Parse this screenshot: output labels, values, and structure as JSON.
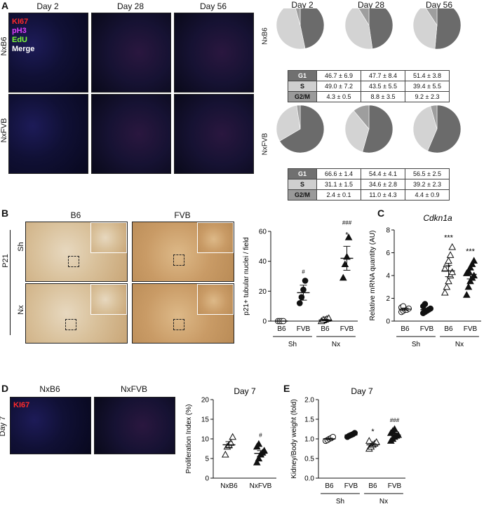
{
  "panels": {
    "A": "A",
    "B": "B",
    "C": "C",
    "D": "D",
    "E": "E"
  },
  "panelA": {
    "days": [
      "Day 2",
      "Day 28",
      "Day 56"
    ],
    "rows": [
      "NxB6",
      "NxFVB"
    ],
    "legend": [
      {
        "text": "KI67",
        "color": "#ff2a2a"
      },
      {
        "text": "pH3",
        "color": "#e040ff"
      },
      {
        "text": "EdU",
        "color": "#7dff3a"
      },
      {
        "text": "Merge",
        "color": "#ffffff"
      }
    ],
    "phase_colors": {
      "G1": "#6b6b6b",
      "S": "#d3d3d3",
      "G2/M": "#9e9e9e"
    },
    "tables": [
      {
        "row": "NxB6",
        "lines": [
          {
            "phase": "G1",
            "vals": [
              "46.7 ± 6.9",
              "47.7 ± 8.4",
              "51.4 ± 3.8"
            ]
          },
          {
            "phase": "S",
            "vals": [
              "49.0 ± 7.2",
              "43.5 ± 5.5",
              "39.4 ± 5.5"
            ]
          },
          {
            "phase": "G2/M",
            "vals": [
              "4.3 ± 0.5",
              "8.8 ± 3.5",
              "9.2 ± 2.3"
            ]
          }
        ]
      },
      {
        "row": "NxFVB",
        "lines": [
          {
            "phase": "G1",
            "vals": [
              "66.6 ± 1.4",
              "54.4 ± 4.1",
              "56.5 ± 2.5"
            ]
          },
          {
            "phase": "S",
            "vals": [
              "31.1 ± 1.5",
              "34.6 ± 2.8",
              "39.2 ± 2.3"
            ]
          },
          {
            "phase": "G2/M",
            "vals": [
              "2.4 ± 0.1",
              "11.0 ± 4.3",
              "4.4 ± 0.9"
            ]
          }
        ]
      }
    ]
  },
  "panelB": {
    "cols": [
      "B6",
      "FVB"
    ],
    "rows": [
      "Sh",
      "Nx"
    ],
    "stain": "P21"
  },
  "panelD": {
    "cols": [
      "NxB6",
      "NxFVB"
    ],
    "row": "Day 7",
    "legend": "KI67"
  },
  "chart_data": [
    {
      "type": "pie",
      "panel": "A",
      "row": "NxB6",
      "categories": [
        "Day 2",
        "Day 28",
        "Day 56"
      ],
      "series": [
        {
          "name": "G1",
          "values": [
            46.7,
            47.7,
            51.4
          ]
        },
        {
          "name": "S",
          "values": [
            49.0,
            43.5,
            39.4
          ]
        },
        {
          "name": "G2/M",
          "values": [
            4.3,
            8.8,
            9.2
          ]
        }
      ]
    },
    {
      "type": "pie",
      "panel": "A",
      "row": "NxFVB",
      "categories": [
        "Day 2",
        "Day 28",
        "Day 56"
      ],
      "series": [
        {
          "name": "G1",
          "values": [
            66.6,
            54.4,
            56.5
          ]
        },
        {
          "name": "S",
          "values": [
            31.1,
            34.6,
            39.2
          ]
        },
        {
          "name": "G2/M",
          "values": [
            2.4,
            11.0,
            4.4
          ]
        }
      ]
    },
    {
      "type": "scatter",
      "panel": "B",
      "title": "",
      "ylabel": "p21+ tubular nuclei / field",
      "ylim": [
        0,
        60
      ],
      "yticks": [
        0,
        20,
        40,
        60
      ],
      "categories": [
        "B6",
        "FVB",
        "B6",
        "FVB"
      ],
      "groups": [
        "Sh",
        "Nx"
      ],
      "series": [
        {
          "category": "B6",
          "group": "Sh",
          "marker": "open-circle",
          "points": [
            0,
            0,
            0,
            0
          ],
          "mean": 0,
          "sem": 0
        },
        {
          "category": "FVB",
          "group": "Sh",
          "marker": "filled-circle",
          "points": [
            12,
            16,
            21,
            27
          ],
          "mean": 19,
          "sem": 5
        },
        {
          "category": "B6",
          "group": "Nx",
          "marker": "open-triangle",
          "points": [
            0,
            0.5,
            1,
            1.5,
            2,
            0,
            1
          ],
          "mean": 0.7,
          "sem": 0.5
        },
        {
          "category": "FVB",
          "group": "Nx",
          "marker": "filled-triangle",
          "points": [
            29,
            38,
            43,
            56
          ],
          "mean": 42,
          "sem": 8
        }
      ],
      "annotations": [
        {
          "category_index": 1,
          "text": "#"
        },
        {
          "category_index": 3,
          "text": "###"
        },
        {
          "category_index": 3,
          "text": "*"
        }
      ]
    },
    {
      "type": "scatter",
      "panel": "C",
      "title": "Cdkn1a",
      "ylabel": "Relative mRNA quantity (AU)",
      "ylim": [
        0,
        8
      ],
      "yticks": [
        0,
        2,
        4,
        6,
        8
      ],
      "categories": [
        "B6",
        "FVB",
        "B6",
        "FVB"
      ],
      "groups": [
        "Sh",
        "Nx"
      ],
      "series": [
        {
          "category": "B6",
          "group": "Sh",
          "marker": "open-circle",
          "points": [
            0.8,
            0.9,
            1.0,
            1.0,
            1.1,
            1.2,
            1.3
          ],
          "mean": 1.05,
          "sem": 0.1
        },
        {
          "category": "FVB",
          "group": "Sh",
          "marker": "filled-circle",
          "points": [
            0.7,
            0.8,
            0.9,
            1.0,
            1.1,
            1.3,
            1.5
          ],
          "mean": 1.0,
          "sem": 0.1
        },
        {
          "category": "B6",
          "group": "Nx",
          "marker": "open-triangle",
          "points": [
            2.5,
            3.0,
            3.5,
            4.0,
            4.3,
            4.6,
            5.0,
            5.3,
            5.8,
            6.5
          ],
          "mean": 4.4,
          "sem": 0.5
        },
        {
          "category": "FVB",
          "group": "Nx",
          "marker": "filled-triangle",
          "points": [
            2.3,
            3.0,
            3.5,
            3.8,
            4.0,
            4.2,
            4.4,
            4.7,
            5.0,
            5.3
          ],
          "mean": 4.1,
          "sem": 0.4
        }
      ],
      "annotations": [
        {
          "category_index": 2,
          "text": "***"
        },
        {
          "category_index": 3,
          "text": "***"
        }
      ]
    },
    {
      "type": "scatter",
      "panel": "D",
      "title": "Day 7",
      "ylabel": "Proliferation Index (%)",
      "ylim": [
        0,
        20
      ],
      "yticks": [
        0,
        5,
        10,
        15,
        20
      ],
      "categories": [
        "NxB6",
        "NxFVB"
      ],
      "series": [
        {
          "category": "NxB6",
          "marker": "open-triangle",
          "points": [
            6.0,
            8.0,
            8.5,
            9.0,
            10.5
          ],
          "mean": 8.5,
          "sem": 0.8
        },
        {
          "category": "NxFVB",
          "marker": "filled-triangle",
          "points": [
            4.0,
            5.0,
            6.0,
            6.5,
            7.0,
            8.0,
            8.7
          ],
          "mean": 6.3,
          "sem": 0.7
        }
      ],
      "annotations": [
        {
          "category_index": 1,
          "text": "#"
        }
      ]
    },
    {
      "type": "scatter",
      "panel": "E",
      "title": "Day 7",
      "ylabel": "Kidney/Body weight (fold)",
      "ylim": [
        0.0,
        2.0
      ],
      "yticks": [
        "0.0",
        "0.5",
        "1.0",
        "1.5",
        "2.0"
      ],
      "categories": [
        "B6",
        "FVB",
        "B6",
        "FVB"
      ],
      "groups": [
        "Sh",
        "Nx"
      ],
      "series": [
        {
          "category": "B6",
          "group": "Sh",
          "marker": "open-circle",
          "points": [
            0.95,
            0.97,
            1.0,
            1.02,
            1.05
          ],
          "mean": 1.0,
          "sem": 0.02
        },
        {
          "category": "FVB",
          "group": "Sh",
          "marker": "filled-circle",
          "points": [
            1.05,
            1.08,
            1.1,
            1.12,
            1.15
          ],
          "mean": 1.1,
          "sem": 0.02
        },
        {
          "category": "B6",
          "group": "Nx",
          "marker": "open-triangle",
          "points": [
            0.75,
            0.8,
            0.85,
            0.88,
            0.92,
            0.95
          ],
          "mean": 0.85,
          "sem": 0.03
        },
        {
          "category": "FVB",
          "group": "Nx",
          "marker": "filled-triangle",
          "points": [
            0.95,
            1.0,
            1.05,
            1.08,
            1.1,
            1.15,
            1.2,
            1.25
          ],
          "mean": 1.1,
          "sem": 0.03
        }
      ],
      "annotations": [
        {
          "category_index": 2,
          "text": "*"
        },
        {
          "category_index": 3,
          "text": "###"
        }
      ]
    }
  ]
}
